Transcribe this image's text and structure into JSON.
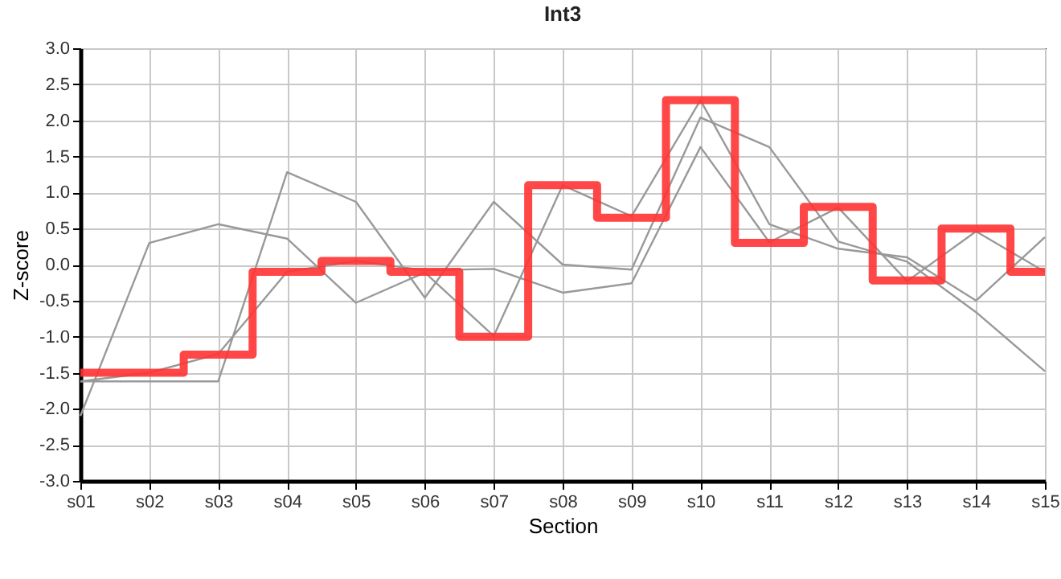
{
  "chart_data": {
    "type": "line",
    "title": "Int3",
    "xlabel": "Section",
    "ylabel": "Z-score",
    "categories": [
      "s01",
      "s02",
      "s03",
      "s04",
      "s05",
      "s06",
      "s07",
      "s08",
      "s09",
      "s10",
      "s11",
      "s12",
      "s13",
      "s14",
      "s15"
    ],
    "series": [
      {
        "color": "#999999",
        "values": [
          -2.1,
          0.3,
          0.56,
          0.36,
          -0.53,
          -0.11,
          -0.99,
          1.1,
          0.67,
          2.28,
          0.56,
          0.22,
          0.1,
          -0.5,
          0.38
        ]
      },
      {
        "color": "#999999",
        "values": [
          -1.62,
          -1.62,
          -1.62,
          1.28,
          0.87,
          -0.46,
          0.87,
          0.0,
          -0.07,
          2.04,
          1.63,
          0.32,
          0.04,
          -0.66,
          -1.48
        ]
      },
      {
        "color": "#999999",
        "values": [
          -1.62,
          -1.5,
          -1.24,
          -0.1,
          0.05,
          -0.08,
          -0.06,
          -0.39,
          -0.26,
          1.63,
          0.31,
          0.79,
          -0.23,
          0.46,
          -0.1
        ]
      },
      {
        "type": "step",
        "color": "#ff3333",
        "values": [
          -1.5,
          -1.5,
          -1.25,
          -0.1,
          0.05,
          -0.1,
          -1.0,
          1.1,
          0.65,
          2.28,
          0.3,
          0.8,
          -0.22,
          0.5,
          -0.1
        ]
      }
    ],
    "ylim": [
      -3,
      3
    ],
    "yticks": [
      {
        "value": -3,
        "label": "-3.0"
      },
      {
        "value": -2.5,
        "label": "-2.5"
      },
      {
        "value": -2,
        "label": "-2.0"
      },
      {
        "value": -1.5,
        "label": "-1.5"
      },
      {
        "value": -1,
        "label": "-1.0"
      },
      {
        "value": -0.5,
        "label": "-0.5"
      },
      {
        "value": 0,
        "label": "0.0"
      },
      {
        "value": 0.5,
        "label": "0.5"
      },
      {
        "value": 1,
        "label": "1.0"
      },
      {
        "value": 1.5,
        "label": "1.5"
      },
      {
        "value": 2,
        "label": "2.0"
      },
      {
        "value": 2.5,
        "label": "2.5"
      },
      {
        "value": 3,
        "label": "3.0"
      }
    ],
    "grid": true
  }
}
